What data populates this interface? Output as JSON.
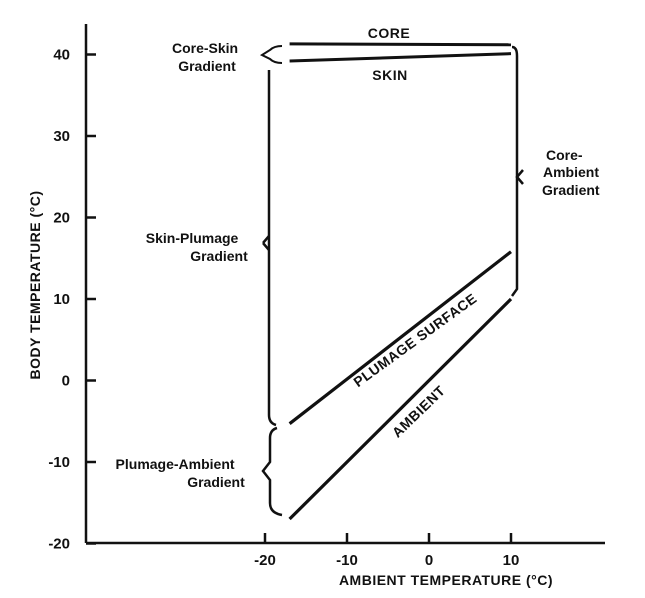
{
  "chart_data": {
    "type": "line",
    "title": "",
    "xlabel": "AMBIENT TEMPERATURE (°C)",
    "ylabel": "BODY TEMPERATURE (°C)",
    "xlim": [
      -30,
      11
    ],
    "ylim": [
      -20,
      43
    ],
    "xticks": [
      -20,
      -10,
      0,
      10
    ],
    "yticks": [
      -20,
      -10,
      0,
      10,
      20,
      30,
      40
    ],
    "grid": false,
    "series": [
      {
        "name": "CORE",
        "x": [
          -17,
          10
        ],
        "y": [
          41.3,
          41.2
        ]
      },
      {
        "name": "SKIN",
        "x": [
          -17,
          10
        ],
        "y": [
          39.2,
          40.1
        ]
      },
      {
        "name": "PLUMAGE SURFACE",
        "x": [
          -17,
          10
        ],
        "y": [
          -5.3,
          15.8
        ]
      },
      {
        "name": "AMBIENT",
        "x": [
          -17,
          10
        ],
        "y": [
          -17,
          10
        ]
      }
    ],
    "annotations": [
      {
        "id": "core-skin",
        "lines": [
          "Core-Skin",
          "Gradient"
        ]
      },
      {
        "id": "skin-plumage",
        "lines": [
          "Skin-Plumage",
          "Gradient"
        ]
      },
      {
        "id": "plumage-ambient",
        "lines": [
          "Plumage-Ambient",
          "Gradient"
        ]
      },
      {
        "id": "core-ambient",
        "lines": [
          "Core-",
          "Ambient",
          "Gradient"
        ]
      }
    ]
  }
}
